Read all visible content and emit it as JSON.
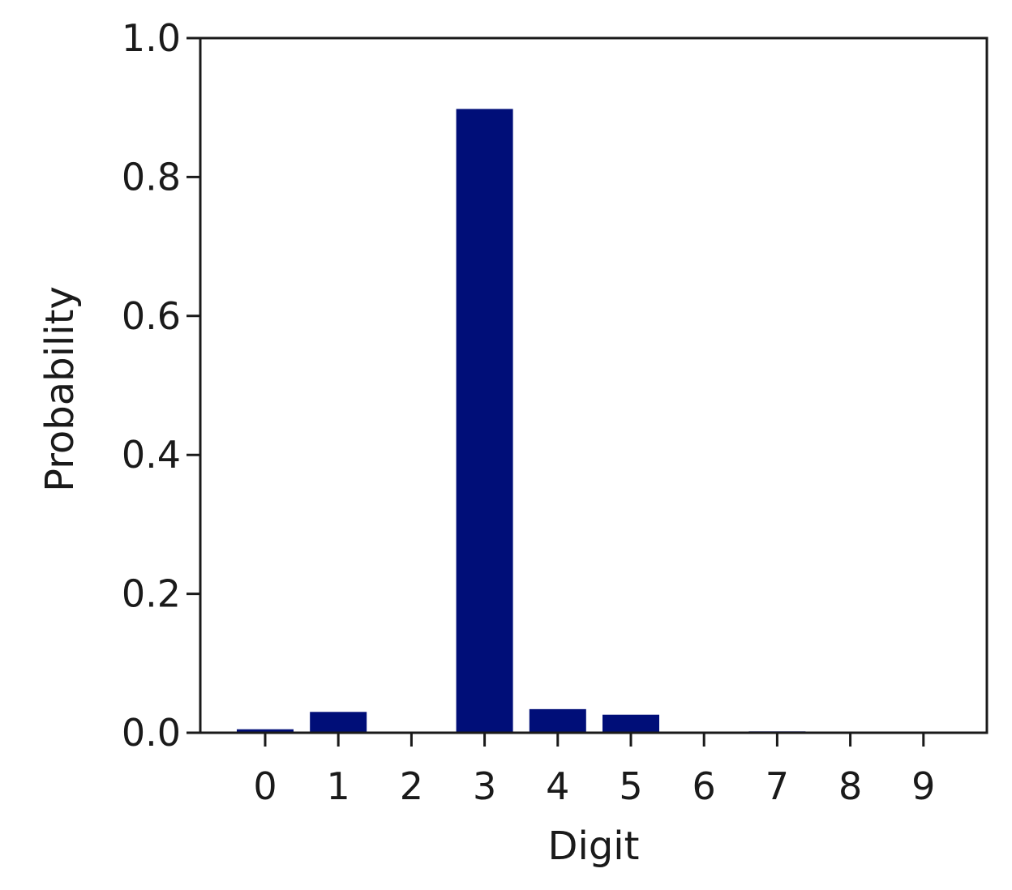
{
  "chart_data": {
    "type": "bar",
    "categories": [
      "0",
      "1",
      "2",
      "3",
      "4",
      "5",
      "6",
      "7",
      "8",
      "9"
    ],
    "values": [
      0.005,
      0.03,
      0.0,
      0.898,
      0.034,
      0.026,
      0.001,
      0.002,
      0.0,
      0.0
    ],
    "title": "",
    "xlabel": "Digit",
    "ylabel": "Probability",
    "ylim": [
      0,
      1.0
    ],
    "yticks": [
      "0.0",
      "0.2",
      "0.4",
      "0.6",
      "0.8",
      "1.0"
    ],
    "bar_color": "#000e78",
    "grid": false
  }
}
